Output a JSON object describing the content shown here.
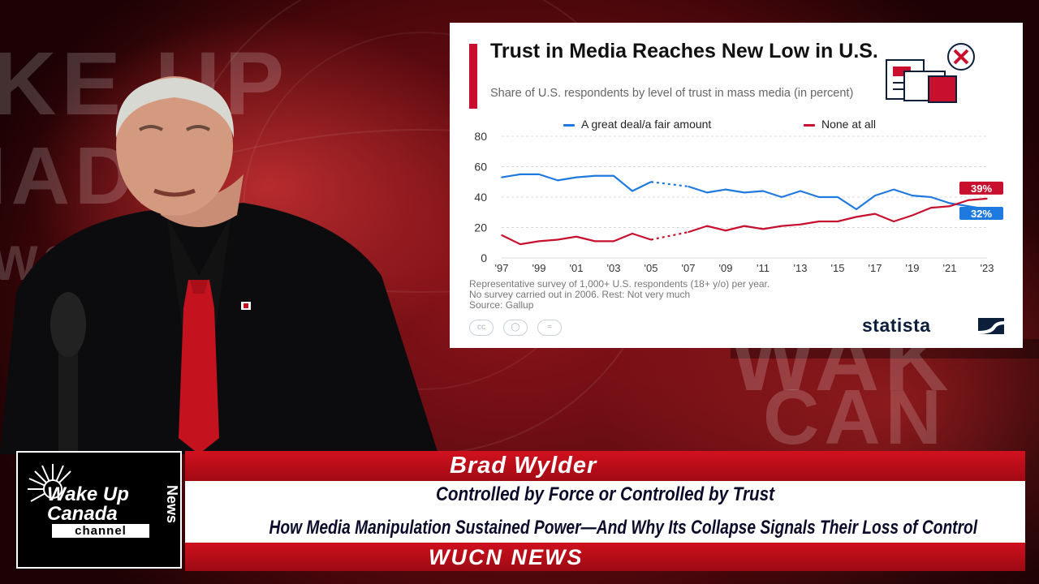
{
  "chart_data": {
    "type": "line",
    "title": "Trust in Media Reaches New Low in U.S.",
    "subtitle": "Share of U.S. respondents by level of trust in mass media (in percent)",
    "x_range": [
      1997,
      2023
    ],
    "x_tick_labels": [
      "'97",
      "'99",
      "'01",
      "'03",
      "'05",
      "'07",
      "'09",
      "'11",
      "'13",
      "'15",
      "'17",
      "'19",
      "'21",
      "'23"
    ],
    "x_tick_years": [
      1997,
      1999,
      2001,
      2003,
      2005,
      2007,
      2009,
      2011,
      2013,
      2015,
      2017,
      2019,
      2021,
      2023
    ],
    "ylim": [
      0,
      80
    ],
    "y_ticks": [
      0,
      20,
      40,
      60,
      80
    ],
    "grid": "horizontal dashed",
    "legend_position": "top",
    "gap_note": "No survey carried out in 2006",
    "series": [
      {
        "name": "A great deal/a fair amount",
        "color": "#1f7ae0",
        "x": [
          1997,
          1998,
          1999,
          2000,
          2001,
          2002,
          2003,
          2004,
          2005,
          2007,
          2008,
          2009,
          2010,
          2011,
          2012,
          2013,
          2014,
          2015,
          2016,
          2017,
          2018,
          2019,
          2020,
          2021,
          2022,
          2023
        ],
        "y": [
          53,
          55,
          55,
          51,
          53,
          54,
          54,
          44,
          50,
          47,
          43,
          45,
          43,
          44,
          40,
          44,
          40,
          40,
          32,
          41,
          45,
          41,
          40,
          36,
          34,
          32
        ],
        "end_label": "32%"
      },
      {
        "name": "None at all",
        "color": "#c8102e",
        "x": [
          1997,
          1998,
          1999,
          2000,
          2001,
          2002,
          2003,
          2004,
          2005,
          2007,
          2008,
          2009,
          2010,
          2011,
          2012,
          2013,
          2014,
          2015,
          2016,
          2017,
          2018,
          2019,
          2020,
          2021,
          2022,
          2023
        ],
        "y": [
          15,
          9,
          11,
          12,
          14,
          11,
          11,
          16,
          12,
          17,
          21,
          18,
          21,
          19,
          21,
          22,
          24,
          24,
          27,
          29,
          24,
          28,
          33,
          34,
          38,
          39
        ],
        "end_label": "39%"
      }
    ],
    "footnote": [
      "Representative survey of 1,000+ U.S. respondents  (18+ y/o) per year.",
      "No survey carried out in 2006. Rest: Not very much",
      "Source: Gallup"
    ],
    "license_icons": [
      "creative-commons-icon",
      "attribution-icon",
      "no-derivatives-icon"
    ],
    "brand": "statista",
    "colors": {
      "accent": "#c8102e",
      "blue": "#1f7ae0"
    }
  },
  "overlay": {
    "logo": {
      "line1": "Wake Up",
      "line2": "Canada",
      "line3": "channel",
      "vertical": "News"
    },
    "presenter_name": "Brad Wylder",
    "headline_1": "Controlled by Force or Controlled by Trust",
    "headline_2": "How Media Manipulation Sustained Power—And Why Its Collapse Signals Their Loss of Control",
    "network": "WUCN NEWS"
  },
  "colors": {
    "banner_red": "#c8101d",
    "banner_white": "#ffffff",
    "headline_text": "#0b0b2a"
  }
}
